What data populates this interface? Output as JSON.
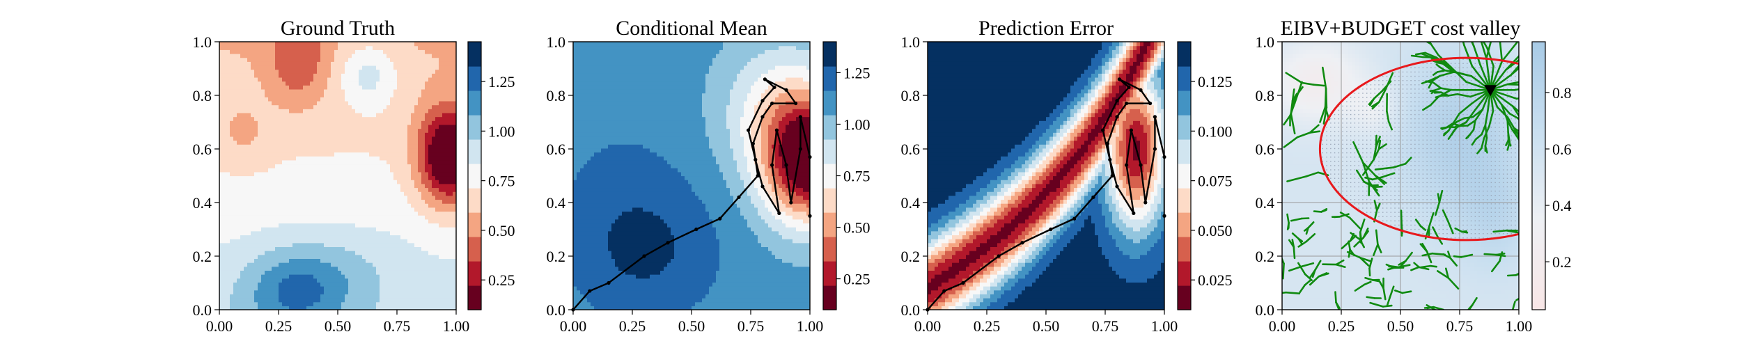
{
  "chart_data": [
    {
      "type": "heatmap",
      "title": "Ground Truth",
      "xlabel": "",
      "ylabel": "",
      "xlim": [
        0,
        1
      ],
      "ylim": [
        0,
        1
      ],
      "x_ticks": [
        "0.00",
        "0.25",
        "0.50",
        "0.75",
        "1.00"
      ],
      "y_ticks": [
        "0.0",
        "0.2",
        "0.4",
        "0.6",
        "0.8",
        "1.0"
      ],
      "colormap": "RdBu",
      "colorbar": {
        "ticks": [
          "0.25",
          "0.50",
          "0.75",
          "1.00",
          "1.25"
        ],
        "tick_values": [
          0.25,
          0.5,
          0.75,
          1.0,
          1.25
        ],
        "range": [
          0.1,
          1.45
        ],
        "levels": 11
      },
      "field": "ground_truth"
    },
    {
      "type": "heatmap",
      "title": "Conditional Mean",
      "xlabel": "",
      "ylabel": "",
      "xlim": [
        0,
        1
      ],
      "ylim": [
        0,
        1
      ],
      "x_ticks": [
        "0.00",
        "0.25",
        "0.50",
        "0.75",
        "1.00"
      ],
      "y_ticks": [
        "0.0",
        "0.2",
        "0.4",
        "0.6",
        "0.8",
        "1.0"
      ],
      "colormap": "RdBu",
      "colorbar": {
        "ticks": [
          "0.25",
          "0.50",
          "0.75",
          "1.00",
          "1.25"
        ],
        "tick_values": [
          0.25,
          0.5,
          0.75,
          1.0,
          1.25
        ],
        "range": [
          0.1,
          1.4
        ],
        "levels": 11
      },
      "field": "conditional_mean",
      "path": "agent_path"
    },
    {
      "type": "heatmap",
      "title": "Prediction Error",
      "xlabel": "",
      "ylabel": "",
      "xlim": [
        0,
        1
      ],
      "ylim": [
        0,
        1
      ],
      "x_ticks": [
        "0.00",
        "0.25",
        "0.50",
        "0.75",
        "1.00"
      ],
      "y_ticks": [
        "0.0",
        "0.2",
        "0.4",
        "0.6",
        "0.8",
        "1.0"
      ],
      "colormap": "RdBu",
      "colorbar": {
        "ticks": [
          "0.025",
          "0.050",
          "0.075",
          "0.100",
          "0.125"
        ],
        "tick_values": [
          0.025,
          0.05,
          0.075,
          0.1,
          0.125
        ],
        "range": [
          0.01,
          0.145
        ],
        "levels": 11
      },
      "field": "prediction_error",
      "path": "agent_path"
    },
    {
      "type": "heatmap",
      "title": "EIBV+BUDGET cost valley",
      "xlabel": "",
      "ylabel": "",
      "xlim": [
        0,
        1
      ],
      "ylim": [
        0,
        1
      ],
      "x_ticks": [
        "0.00",
        "0.25",
        "0.50",
        "0.75",
        "1.00"
      ],
      "y_ticks": [
        "0.0",
        "0.2",
        "0.4",
        "0.6",
        "0.8",
        "1.0"
      ],
      "colormap": "RdBu-light",
      "colorbar": {
        "ticks": [
          "0.2",
          "0.4",
          "0.6",
          "0.8"
        ],
        "tick_values": [
          0.2,
          0.4,
          0.6,
          0.8
        ],
        "range": [
          0.03,
          0.98
        ]
      },
      "field": "cost_valley",
      "budget_ellipse": {
        "center": [
          0.78,
          0.6
        ],
        "radius_x": 0.62,
        "radius_y": 0.34,
        "color": "#e8191c"
      },
      "current_location": [
        0.88,
        0.82
      ],
      "tree_color": "#108a10",
      "grid_lines": {
        "x": [
          0.25,
          0.5,
          0.75
        ],
        "y": [
          0.2,
          0.4
        ]
      }
    }
  ],
  "agent_path": [
    [
      0.0,
      0.0
    ],
    [
      0.07,
      0.07
    ],
    [
      0.15,
      0.1
    ],
    [
      0.3,
      0.2
    ],
    [
      0.4,
      0.25
    ],
    [
      0.52,
      0.3
    ],
    [
      0.62,
      0.34
    ],
    [
      0.7,
      0.42
    ],
    [
      0.78,
      0.5
    ],
    [
      0.76,
      0.62
    ],
    [
      0.8,
      0.72
    ],
    [
      0.84,
      0.77
    ],
    [
      0.94,
      0.77
    ],
    [
      0.9,
      0.82
    ],
    [
      0.81,
      0.86
    ],
    [
      0.85,
      0.83
    ],
    [
      0.8,
      0.78
    ],
    [
      0.74,
      0.67
    ],
    [
      0.77,
      0.56
    ],
    [
      0.8,
      0.46
    ],
    [
      0.87,
      0.36
    ],
    [
      0.84,
      0.54
    ],
    [
      0.86,
      0.67
    ],
    [
      0.9,
      0.54
    ],
    [
      0.92,
      0.4
    ],
    [
      0.96,
      0.6
    ],
    [
      0.96,
      0.72
    ],
    [
      1.0,
      0.57
    ],
    [
      1.0,
      0.35
    ]
  ],
  "colors": {
    "rdbu": [
      "#67001f",
      "#b2182b",
      "#d6604d",
      "#f4a582",
      "#fddbc7",
      "#f7f7f7",
      "#d1e5f0",
      "#92c5de",
      "#4393c3",
      "#2166ac",
      "#053061"
    ],
    "budget": "#e8191c",
    "tree": "#108a10"
  }
}
